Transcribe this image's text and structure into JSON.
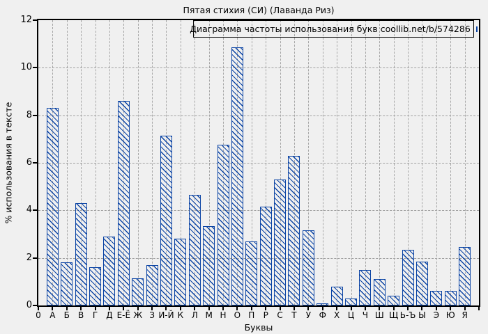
{
  "title": "Пятая стихия (СИ) (Лаванда Риз)",
  "legend": {
    "label": "Диаграмма частоты использования букв coollib.net/b/574286",
    "swatch": "blue-hatched-box"
  },
  "axes": {
    "ylabel": "% использования в тексте",
    "xlabel": "Буквы",
    "origin_label": "0",
    "yticks": [
      0,
      2,
      4,
      6,
      8,
      10,
      12
    ]
  },
  "colors": {
    "bar_outline": "#0a43a4",
    "grid": "#a0a0a0",
    "frame": "#000000",
    "text": "#000000",
    "background": "#f0f0f0"
  },
  "chart_data": {
    "type": "bar",
    "title": "Пятая стихия (СИ) (Лаванда Риз)",
    "categories": [
      "А",
      "Б",
      "В",
      "Г",
      "Д",
      "Е-Ё",
      "Ж",
      "З",
      "И-Й",
      "К",
      "Л",
      "М",
      "Н",
      "О",
      "П",
      "Р",
      "С",
      "Т",
      "У",
      "Ф",
      "Х",
      "Ц",
      "Ч",
      "Ш",
      "Щ",
      "Ь-Ъ",
      "Ы",
      "Э",
      "Ю",
      "Я"
    ],
    "values": [
      8.3,
      1.8,
      4.3,
      1.6,
      2.9,
      8.6,
      1.15,
      1.7,
      7.15,
      2.8,
      4.65,
      3.35,
      6.75,
      10.85,
      2.7,
      4.15,
      5.3,
      6.3,
      3.15,
      0.1,
      0.8,
      0.3,
      1.5,
      1.1,
      0.4,
      2.35,
      1.85,
      0.6,
      0.6,
      2.45
    ],
    "xlabel": "Буквы",
    "ylabel": "% использования в тексте",
    "ylim": [
      0,
      12
    ],
    "yticks": [
      0,
      2,
      4,
      6,
      8,
      10,
      12
    ],
    "grid": true,
    "legend": "Диаграмма частоты использования букв coollib.net/b/574286",
    "legend_position": "top-center",
    "bar_style": "unfilled with blue \\ hatch pattern and blue outline"
  }
}
